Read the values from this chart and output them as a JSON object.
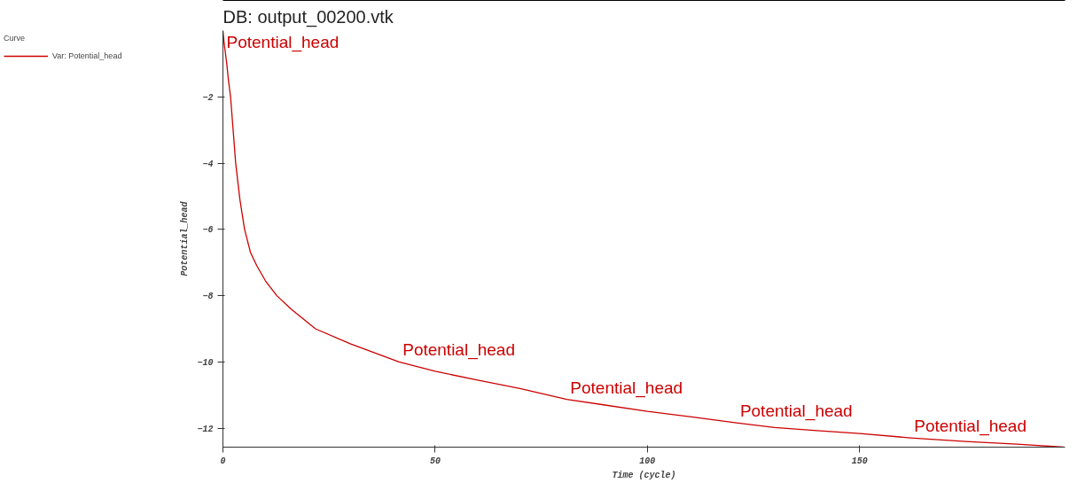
{
  "chart_data": {
    "type": "line",
    "title": "DB: output_00200.vtk",
    "xlabel": "Time (cycle)",
    "ylabel": "Potential_head",
    "legend_title": "Curve",
    "legend": "left",
    "x": [
      0,
      0.3,
      0.6,
      0.9,
      1.3,
      1.8,
      2.4,
      3.0,
      4.0,
      5.1,
      6.5,
      8,
      10,
      12.7,
      16,
      21.8,
      30,
      41.5,
      50,
      60,
      70,
      81,
      90,
      100,
      110,
      121,
      130,
      140,
      150,
      162,
      175,
      187,
      198
    ],
    "series": [
      {
        "name": "Var: Potential_head",
        "color": "#cc0000",
        "values": [
          0,
          -0.4,
          -0.7,
          -1.0,
          -1.5,
          -2.0,
          -3.0,
          -4.0,
          -5.1,
          -6.0,
          -6.7,
          -7.1,
          -7.55,
          -8.0,
          -8.4,
          -9.0,
          -9.45,
          -10.0,
          -10.28,
          -10.55,
          -10.8,
          -11.13,
          -11.3,
          -11.49,
          -11.65,
          -11.84,
          -11.98,
          -12.07,
          -12.16,
          -12.29,
          -12.4,
          -12.48,
          -12.57
        ]
      }
    ],
    "annotations": [
      {
        "text": "Potential_head",
        "x": 0,
        "y": 0
      },
      {
        "text": "Potential_head",
        "x": 41.5,
        "y": -10.0
      },
      {
        "text": "Potential_head",
        "x": 81,
        "y": -11.13
      },
      {
        "text": "Potential_head",
        "x": 121,
        "y": -11.84
      },
      {
        "text": "Potential_head",
        "x": 162,
        "y": -12.29
      }
    ],
    "xlim": [
      0,
      198.4
    ],
    "ylim": [
      -12.57,
      0
    ],
    "xticks": [
      0,
      50,
      100,
      150
    ],
    "yticks": [
      -12,
      -10,
      -8,
      -6,
      -4,
      -2
    ],
    "grid": false,
    "marker": "none",
    "line_style": "solid"
  }
}
